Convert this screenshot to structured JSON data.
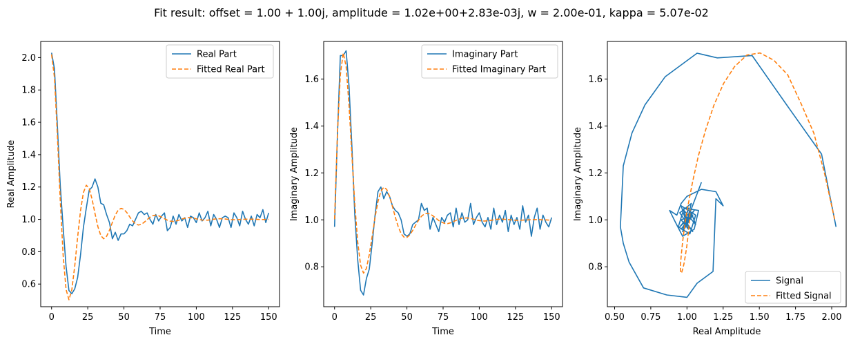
{
  "figure": {
    "title": "Fit result: offset = 1.00 + 1.00j, amplitude = 1.02e+00+2.83e-03j,  w = 2.00e-01, kappa = 5.07e-02"
  },
  "colors": {
    "signal": "#1f77b4",
    "fit": "#ff7f0e"
  },
  "chart_data": [
    {
      "type": "line",
      "xlabel": "Time",
      "ylabel": "Real Amplitude",
      "xlim": [
        -7.5,
        157.5
      ],
      "ylim": [
        0.46,
        2.1
      ],
      "xticks": [
        0,
        25,
        50,
        75,
        100,
        125,
        150
      ],
      "xtick_labels": [
        "0",
        "25",
        "50",
        "75",
        "100",
        "125",
        "150"
      ],
      "yticks": [
        0.6,
        0.8,
        1.0,
        1.2,
        1.4,
        1.6,
        1.8,
        2.0
      ],
      "ytick_labels": [
        "0.6",
        "0.8",
        "1.0",
        "1.2",
        "1.4",
        "1.6",
        "1.8",
        "2.0"
      ],
      "legend_position": "upper-right",
      "series": [
        {
          "name": "Real Part",
          "style": "solid",
          "color": "#1f77b4",
          "t": [
            0,
            2,
            4,
            6,
            8,
            10,
            12,
            14,
            16,
            18,
            20,
            22,
            24,
            26,
            28,
            30,
            32,
            34,
            36,
            38,
            40,
            42,
            44,
            46,
            48,
            50,
            52,
            54,
            56,
            58,
            60,
            62,
            64,
            66,
            68,
            70,
            72,
            74,
            76,
            78,
            80,
            82,
            84,
            86,
            88,
            90,
            92,
            94,
            96,
            98,
            100,
            102,
            104,
            106,
            108,
            110,
            112,
            114,
            116,
            118,
            120,
            122,
            124,
            126,
            128,
            130,
            132,
            134,
            136,
            138,
            140,
            142,
            144,
            146,
            148,
            150
          ],
          "values": [
            2.03,
            1.93,
            1.58,
            1.21,
            0.95,
            0.71,
            0.56,
            0.54,
            0.57,
            0.64,
            0.78,
            0.95,
            1.07,
            1.18,
            1.2,
            1.25,
            1.2,
            1.1,
            1.09,
            1.03,
            0.98,
            0.88,
            0.92,
            0.87,
            0.91,
            0.91,
            0.93,
            0.97,
            0.96,
            1.0,
            1.04,
            1.05,
            1.03,
            1.04,
            1.0,
            0.97,
            1.03,
            0.99,
            1.02,
            1.04,
            0.93,
            0.95,
            1.02,
            0.97,
            1.03,
            0.99,
            1.01,
            0.95,
            1.02,
            1.01,
            0.98,
            1.04,
            0.99,
            1.01,
            1.05,
            0.96,
            1.03,
            1.0,
            0.95,
            1.01,
            1.02,
            1.01,
            0.95,
            1.04,
            1.01,
            0.96,
            1.05,
            1.0,
            0.97,
            1.02,
            0.96,
            1.03,
            1.01,
            1.06,
            0.98,
            1.04
          ]
        },
        {
          "name": "Fitted Real Part",
          "style": "dashed",
          "color": "#ff7f0e",
          "t": [
            0,
            2,
            4,
            6,
            8,
            10,
            12,
            14,
            16,
            18,
            20,
            22,
            24,
            26,
            28,
            30,
            32,
            34,
            36,
            38,
            40,
            42,
            44,
            46,
            48,
            50,
            52,
            54,
            56,
            58,
            60,
            62,
            64,
            66,
            68,
            70,
            72,
            74,
            76,
            78,
            80,
            82,
            84,
            86,
            88,
            90,
            92,
            94,
            96,
            98,
            100,
            102,
            104,
            106,
            108,
            110,
            112,
            114,
            116,
            118,
            120,
            122,
            124,
            126,
            128,
            130,
            132,
            134,
            136,
            138,
            140,
            142,
            144,
            146,
            148,
            150
          ],
          "values": [
            2.02,
            1.877,
            1.521,
            1.116,
            0.777,
            0.567,
            0.503,
            0.565,
            0.711,
            0.89,
            1.053,
            1.166,
            1.211,
            1.191,
            1.124,
            1.036,
            0.955,
            0.9,
            0.88,
            0.895,
            0.933,
            0.981,
            1.026,
            1.057,
            1.068,
            1.062,
            1.042,
            1.015,
            0.99,
            0.972,
            0.965,
            0.969,
            0.982,
            0.998,
            1.013,
            1.023,
            1.026,
            1.022,
            1.014,
            1.004,
            0.995,
            0.989,
            0.987,
            0.99,
            0.995,
            1.002,
            1.007,
            1.01,
            1.01,
            1.008,
            1.003,
            0.999,
            0.996,
            0.995,
            0.995,
            0.998,
            1.001,
            1.003,
            1.004,
            1.003,
            1.002,
            1.0,
            0.998,
            0.998,
            0.998,
            0.999,
            1.0,
            1.001,
            1.001,
            1.001,
            1.001,
            1.0,
            0.999,
            0.999,
            0.999,
            1.0
          ]
        }
      ]
    },
    {
      "type": "line",
      "xlabel": "Time",
      "ylabel": "Imaginary Amplitude",
      "xlim": [
        -7.5,
        157.5
      ],
      "ylim": [
        0.63,
        1.76
      ],
      "xticks": [
        0,
        25,
        50,
        75,
        100,
        125,
        150
      ],
      "xtick_labels": [
        "0",
        "25",
        "50",
        "75",
        "100",
        "125",
        "150"
      ],
      "yticks": [
        0.8,
        1.0,
        1.2,
        1.4,
        1.6
      ],
      "ytick_labels": [
        "0.8",
        "1.0",
        "1.2",
        "1.4",
        "1.6"
      ],
      "legend_position": "upper-right",
      "series": [
        {
          "name": "Imaginary Part",
          "style": "solid",
          "color": "#1f77b4",
          "t": [
            0,
            2,
            4,
            6,
            8,
            10,
            12,
            14,
            16,
            18,
            20,
            22,
            24,
            26,
            28,
            30,
            32,
            34,
            36,
            38,
            40,
            42,
            44,
            46,
            48,
            50,
            52,
            54,
            56,
            58,
            60,
            62,
            64,
            66,
            68,
            70,
            72,
            74,
            76,
            78,
            80,
            82,
            84,
            86,
            88,
            90,
            92,
            94,
            96,
            98,
            100,
            102,
            104,
            106,
            108,
            110,
            112,
            114,
            116,
            118,
            120,
            122,
            124,
            126,
            128,
            130,
            132,
            134,
            136,
            138,
            140,
            142,
            144,
            146,
            148,
            150
          ],
          "values": [
            0.97,
            1.36,
            1.7,
            1.7,
            1.72,
            1.57,
            1.31,
            1.02,
            0.83,
            0.7,
            0.68,
            0.75,
            0.79,
            0.9,
            1.02,
            1.12,
            1.14,
            1.09,
            1.12,
            1.1,
            1.06,
            1.04,
            1.03,
            1.0,
            0.94,
            0.93,
            0.94,
            0.98,
            0.99,
            1.0,
            1.07,
            1.04,
            1.05,
            0.96,
            1.01,
            0.98,
            0.95,
            1.01,
            0.99,
            1.02,
            1.03,
            0.97,
            1.05,
            0.98,
            1.03,
            0.99,
            1.0,
            1.07,
            0.98,
            1.01,
            1.03,
            0.99,
            0.97,
            1.01,
            0.96,
            1.05,
            0.98,
            1.02,
            0.99,
            1.04,
            0.95,
            1.02,
            0.98,
            1.01,
            0.96,
            1.06,
            0.99,
            1.02,
            0.93,
            1.01,
            1.05,
            0.96,
            1.02,
            0.99,
            0.97,
            1.01
          ]
        },
        {
          "name": "Fitted Imaginary Part",
          "style": "dashed",
          "color": "#ff7f0e",
          "t": [
            0,
            2,
            4,
            6,
            8,
            10,
            12,
            14,
            16,
            18,
            20,
            22,
            24,
            26,
            28,
            30,
            32,
            34,
            36,
            38,
            40,
            42,
            44,
            46,
            48,
            50,
            52,
            54,
            56,
            58,
            60,
            62,
            64,
            66,
            68,
            70,
            72,
            74,
            76,
            78,
            80,
            82,
            84,
            86,
            88,
            90,
            92,
            94,
            96,
            98,
            100,
            102,
            104,
            106,
            108,
            110,
            112,
            114,
            116,
            118,
            120,
            122,
            124,
            126,
            128,
            130,
            132,
            134,
            136,
            138,
            140,
            142,
            144,
            146,
            148,
            150
          ],
          "values": [
            1.003,
            1.369,
            1.618,
            1.711,
            1.653,
            1.488,
            1.273,
            1.067,
            0.906,
            0.807,
            0.773,
            0.793,
            0.852,
            0.93,
            1.011,
            1.078,
            1.122,
            1.139,
            1.13,
            1.1,
            1.057,
            1.011,
            0.971,
            0.941,
            0.926,
            0.925,
            0.936,
            0.955,
            0.977,
            0.998,
            1.015,
            1.025,
            1.028,
            1.025,
            1.017,
            1.007,
            0.997,
            0.99,
            0.985,
            0.984,
            0.987,
            0.992,
            0.998,
            1.003,
            1.007,
            1.008,
            1.008,
            1.006,
            1.003,
            0.999,
            0.997,
            0.995,
            0.995,
            0.996,
            0.998,
            1.0,
            1.002,
            1.003,
            1.003,
            1.002,
            1.001,
            1.0,
            0.999,
            0.998,
            0.998,
            0.999,
            0.999,
            1.0,
            1.001,
            1.001,
            1.001,
            1.001,
            1.0,
            1.0,
            0.999,
            0.999
          ]
        }
      ]
    },
    {
      "type": "line",
      "xlabel": "Real Amplitude",
      "ylabel": "Imaginary Amplitude",
      "xlim": [
        0.45,
        2.1
      ],
      "ylim": [
        0.63,
        1.76
      ],
      "xticks": [
        0.5,
        0.75,
        1.0,
        1.25,
        1.5,
        1.75,
        2.0
      ],
      "xtick_labels": [
        "0.50",
        "0.75",
        "1.00",
        "1.25",
        "1.50",
        "1.75",
        "2.00"
      ],
      "yticks": [
        0.8,
        1.0,
        1.2,
        1.4,
        1.6
      ],
      "ytick_labels": [
        "0.8",
        "1.0",
        "1.2",
        "1.4",
        "1.6"
      ],
      "legend_position": "lower-right",
      "series": [
        {
          "name": "Signal",
          "style": "solid",
          "color": "#1f77b4",
          "x": [
            2.03,
            1.93,
            1.7,
            1.45,
            1.21,
            1.07,
            0.85,
            0.71,
            0.62,
            0.56,
            0.54,
            0.56,
            0.6,
            0.7,
            0.86,
            1.0,
            1.07,
            1.18,
            1.2,
            1.25,
            1.2,
            1.1,
            1.0,
            0.96,
            0.93,
            0.88,
            0.92,
            0.97,
            1.05,
            1.08,
            0.98,
            0.94,
            1.02,
            1.06,
            0.96,
            1.0,
            1.04,
            0.95,
            1.03,
            0.99,
            1.02,
            0.96,
            1.05,
            0.98,
            1.01,
            0.97,
            1.04,
            1.0,
            0.95,
            1.03,
            1.06,
            1.02,
            0.98,
            1.01,
            0.96,
            1.04,
            0.99,
            1.02,
            1.1
          ],
          "y": [
            0.97,
            1.28,
            1.48,
            1.7,
            1.69,
            1.71,
            1.61,
            1.49,
            1.37,
            1.23,
            0.97,
            0.9,
            0.82,
            0.71,
            0.68,
            0.67,
            0.73,
            0.78,
            1.09,
            1.06,
            1.12,
            1.13,
            1.1,
            1.07,
            1.02,
            1.04,
            0.99,
            0.93,
            0.96,
            1.04,
            1.05,
            0.97,
            0.94,
            1.02,
            1.06,
            0.98,
            0.95,
            1.03,
            1.07,
            0.97,
            1.01,
            0.96,
            1.04,
            0.99,
            1.05,
            0.95,
            1.02,
            1.0,
            0.97,
            1.03,
            0.98,
            1.01,
            1.04,
            0.96,
            1.0,
            1.02,
            0.99,
            1.03,
            1.16
          ]
        },
        {
          "name": "Fitted Signal",
          "style": "dashed",
          "color": "#ff7f0e",
          "x": [
            2.02,
            1.952,
            1.877,
            1.79,
            1.696,
            1.6,
            1.505,
            1.414,
            1.329,
            1.253,
            1.186,
            1.128,
            1.079,
            1.04,
            1.009,
            0.986,
            0.97,
            0.96,
            0.955,
            0.955,
            0.958,
            0.964,
            0.972,
            0.981,
            0.99,
            0.999,
            1.007,
            1.014,
            1.019,
            1.022
          ],
          "y": [
            1.003,
            1.194,
            1.369,
            1.493,
            1.618,
            1.68,
            1.711,
            1.702,
            1.653,
            1.581,
            1.488,
            1.381,
            1.273,
            1.165,
            1.067,
            0.985,
            0.906,
            0.846,
            0.807,
            0.784,
            0.773,
            0.777,
            0.793,
            0.818,
            0.852,
            0.888,
            0.93,
            0.971,
            1.011,
            1.046
          ]
        }
      ]
    }
  ]
}
